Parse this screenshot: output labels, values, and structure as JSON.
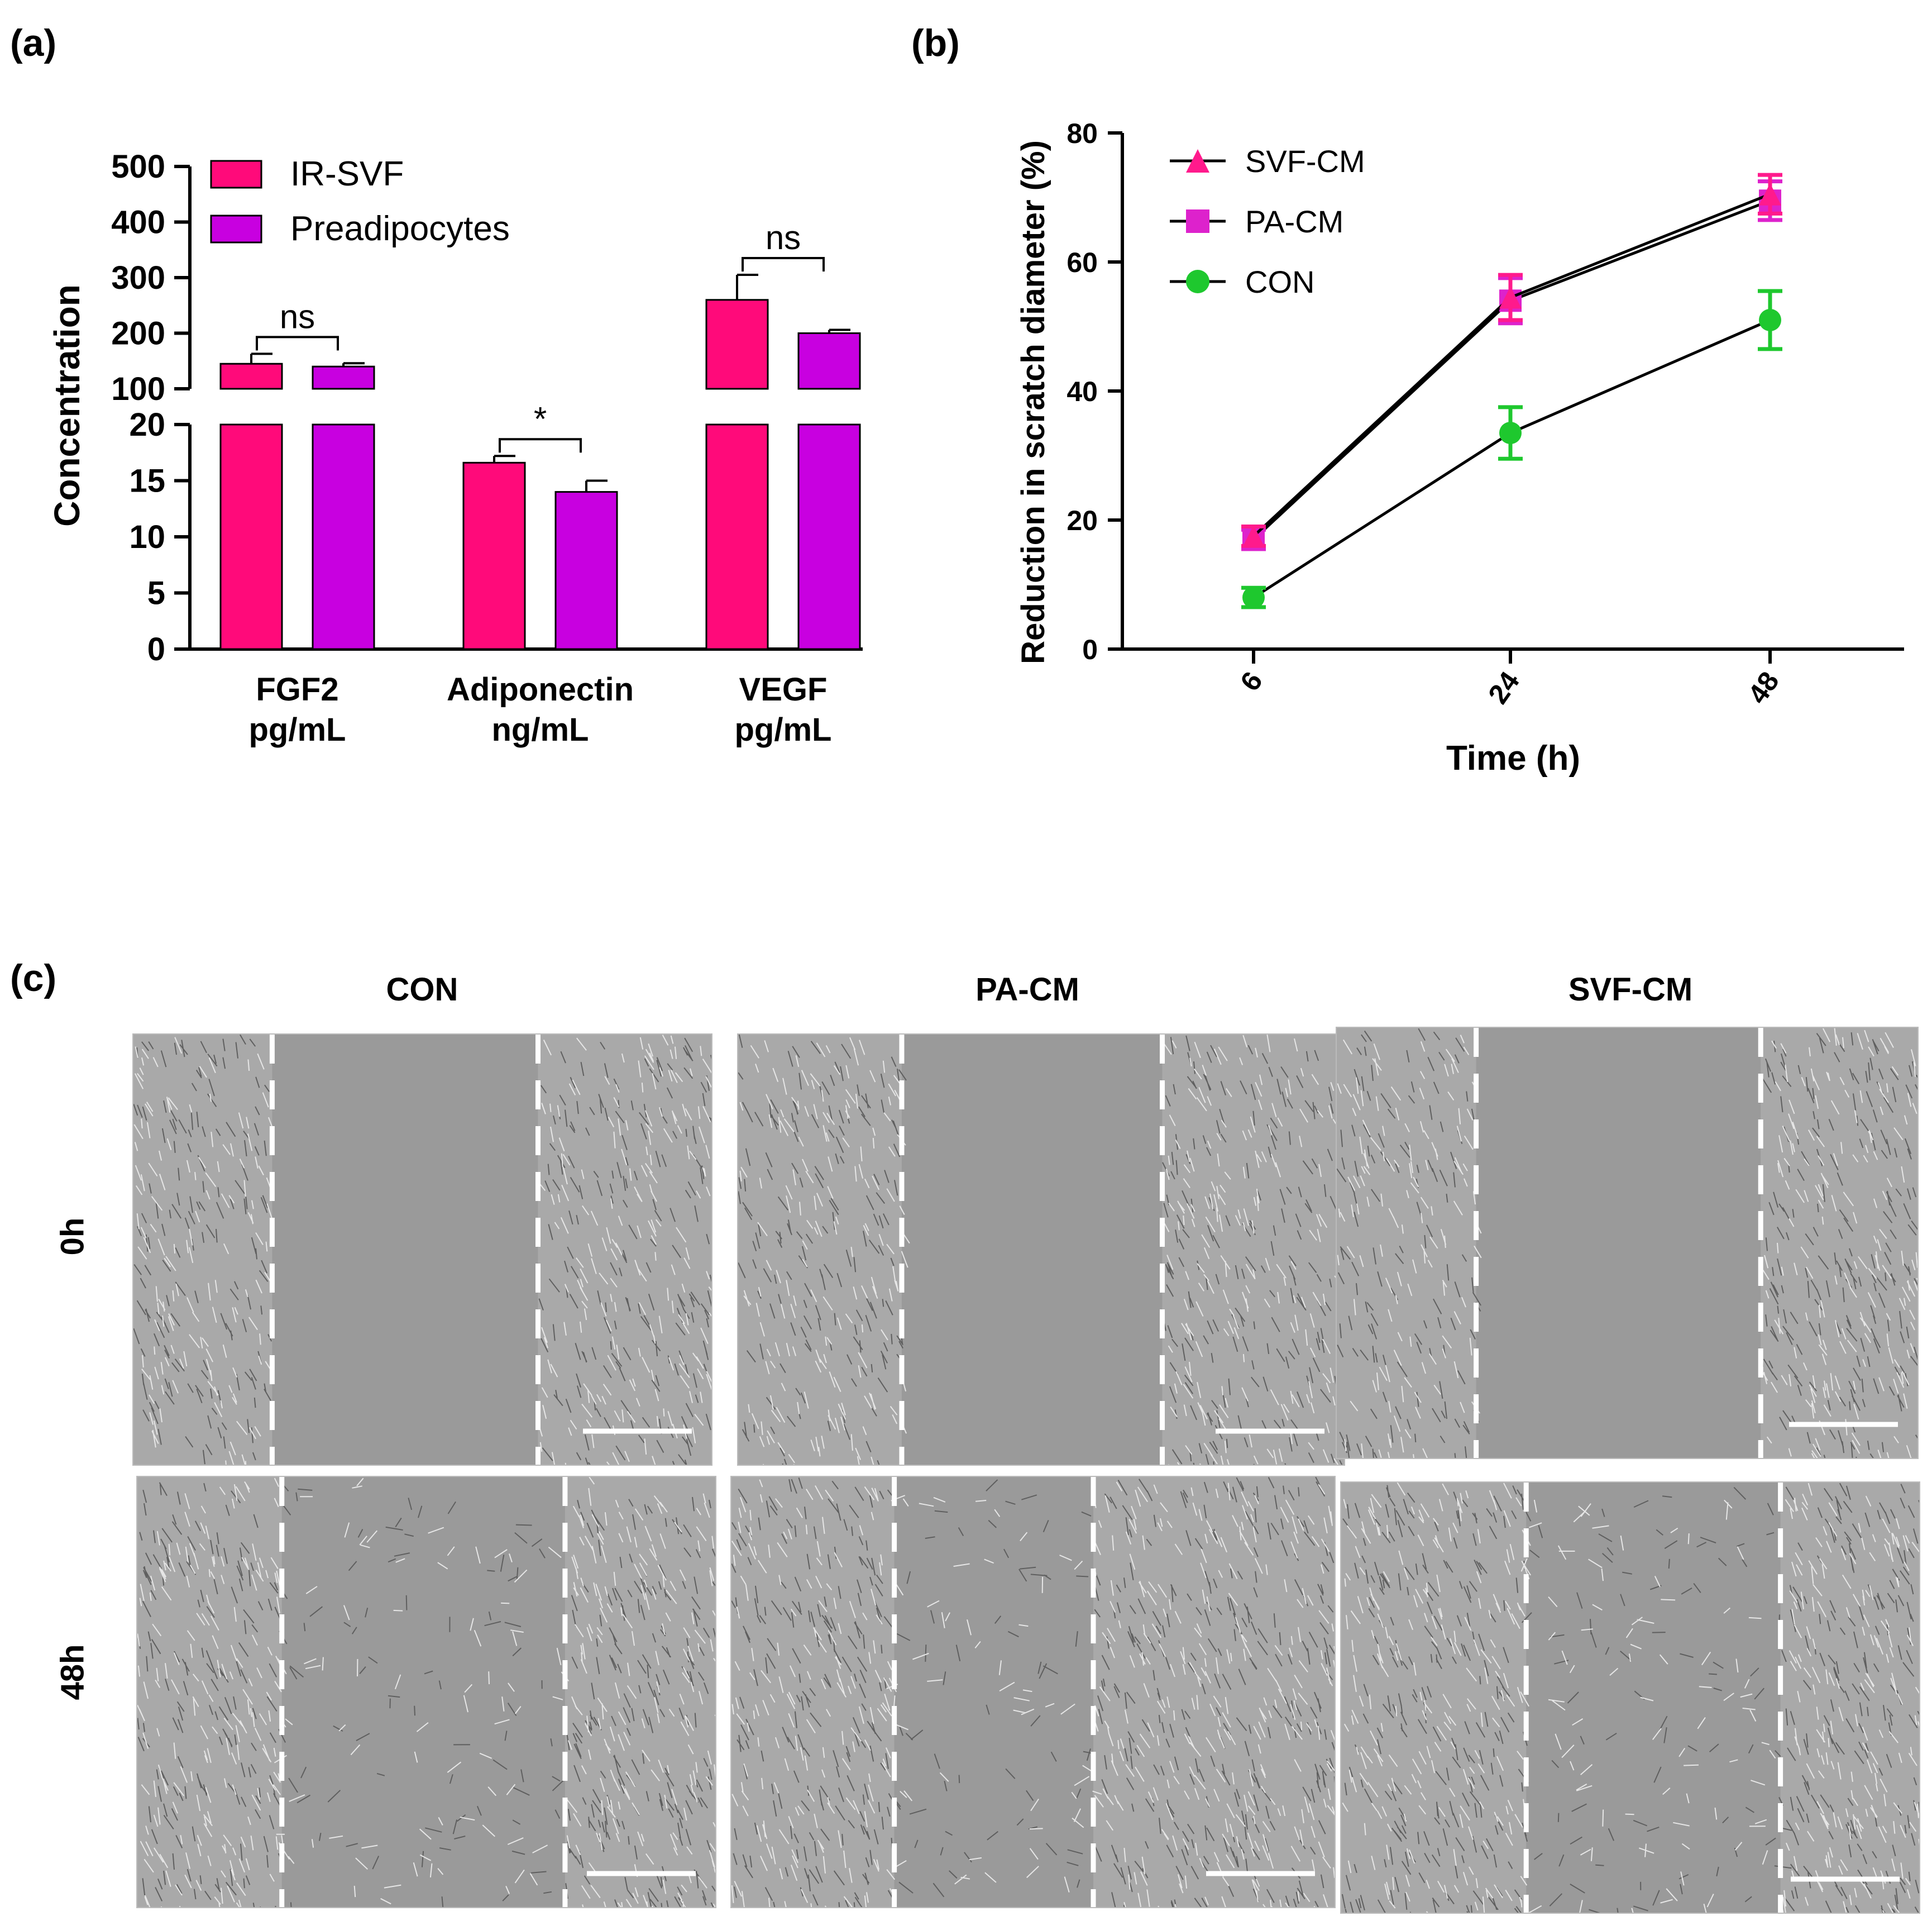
{
  "panels": {
    "a": "(a)",
    "b": "(b)",
    "c": "(c)"
  },
  "chart_data": [
    {
      "type": "bar",
      "panel": "(a)",
      "ylabel": "Concentration",
      "categories": [
        {
          "line1": "FGF2",
          "line2": "pg/mL"
        },
        {
          "line1": "Adiponectin",
          "line2": "ng/mL"
        },
        {
          "line1": "VEGF",
          "line2": "pg/mL"
        }
      ],
      "series": [
        {
          "name": "IR-SVF",
          "color": "#ff0a7a",
          "values": [
            145,
            16.6,
            260
          ],
          "errors": [
            18,
            0.6,
            45
          ]
        },
        {
          "name": "Preadipocytes",
          "color": "#c800e0",
          "values": [
            140,
            14.0,
            200
          ],
          "errors": [
            6,
            1.0,
            6
          ]
        }
      ],
      "axis_break": {
        "lower_range": [
          0,
          20
        ],
        "upper_range": [
          100,
          500
        ]
      },
      "lower_ticks": [
        "0",
        "5",
        "10",
        "15",
        "20"
      ],
      "upper_ticks": [
        "100",
        "200",
        "300",
        "400",
        "500"
      ],
      "significance": [
        "ns",
        "*",
        "ns"
      ],
      "legend_position": "top-left",
      "grid": false
    },
    {
      "type": "line",
      "panel": "(b)",
      "xlabel": "Time (h)",
      "ylabel": "Reduction in scratch diameter (%)",
      "x": [
        6,
        24,
        48
      ],
      "x_ticks": [
        "6",
        "24",
        "48"
      ],
      "y_ticks": [
        "0",
        "20",
        "40",
        "60",
        "80"
      ],
      "ylim": [
        0,
        80
      ],
      "series": [
        {
          "name": "SVF-CM",
          "marker": "triangle",
          "color": "#ff1a8c",
          "values": [
            17.5,
            54.5,
            70.5
          ],
          "errors": [
            1.5,
            3.5,
            3.0
          ]
        },
        {
          "name": "PA-CM",
          "marker": "square",
          "color": "#dd22cc",
          "values": [
            17.0,
            54.0,
            69.5
          ],
          "errors": [
            1.5,
            3.5,
            3.0
          ]
        },
        {
          "name": "CON",
          "marker": "circle",
          "color": "#1ec82e",
          "values": [
            8.0,
            33.5,
            51.0
          ],
          "errors": [
            1.5,
            4.0,
            4.5
          ]
        }
      ],
      "legend_position": "top-left",
      "grid": false
    }
  ],
  "panel_c": {
    "columns": [
      "CON",
      "PA-CM",
      "SVF-CM"
    ],
    "rows": [
      "0h",
      "48h"
    ]
  }
}
